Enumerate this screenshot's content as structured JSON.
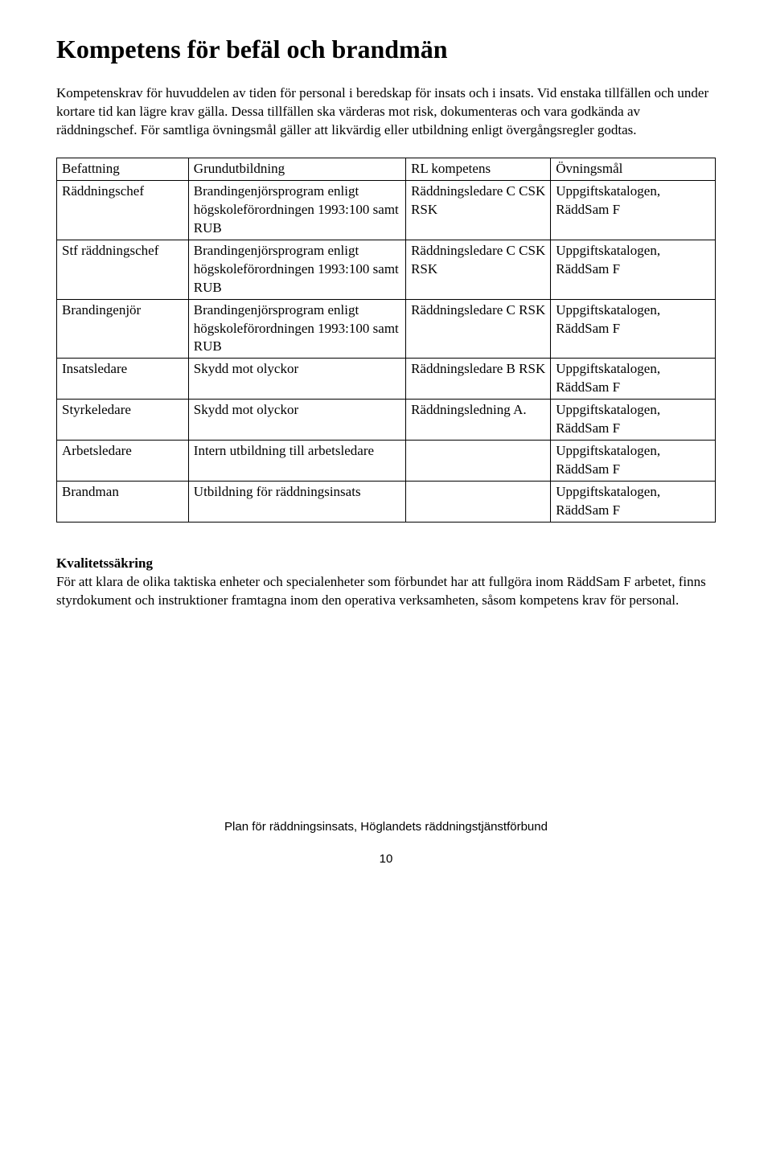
{
  "title": "Kompetens för befäl och brandmän",
  "intro": "Kompetenskrav för huvuddelen av tiden för personal i beredskap för insats och i insats. Vid enstaka tillfällen och under kortare tid kan lägre krav gälla. Dessa tillfällen ska värderas mot risk, dokumenteras och vara godkända av räddningschef. För samtliga övningsmål gäller att likvärdig eller utbildning enligt övergångsregler godtas.",
  "table": {
    "headers": {
      "befattning": "Befattning",
      "grund": "Grundutbildning",
      "rl": "RL kompetens",
      "ovn": "Övningsmål"
    },
    "rows": [
      {
        "befattning": "Räddningschef",
        "grund": "Brandingenjörsprogram enligt högskoleförordningen 1993:100 samt RUB",
        "rl": "Räddningsledare C CSK RSK",
        "ovn": "Uppgiftskatalogen, RäddSam F"
      },
      {
        "befattning": "Stf räddningschef",
        "grund": "Brandingenjörsprogram enligt högskoleförordningen 1993:100 samt RUB",
        "rl": "Räddningsledare C CSK  RSK",
        "ovn": "Uppgiftskatalogen, RäddSam F"
      },
      {
        "befattning": "Brandingenjör",
        "grund": "Brandingenjörsprogram enligt högskoleförordningen 1993:100 samt RUB",
        "rl": "Räddningsledare C RSK",
        "ovn": "Uppgiftskatalogen, RäddSam F"
      },
      {
        "befattning": "Insatsledare",
        "grund": "Skydd mot olyckor",
        "rl": "Räddningsledare B RSK",
        "ovn": "Uppgiftskatalogen, RäddSam F"
      },
      {
        "befattning": "Styrkeledare",
        "grund": "Skydd mot olyckor",
        "rl": "Räddningsledning A.",
        "ovn": "Uppgiftskatalogen, RäddSam F"
      },
      {
        "befattning": "Arbetsledare",
        "grund": "Intern utbildning till arbetsledare",
        "rl": "",
        "ovn": "Uppgiftskatalogen, RäddSam F"
      },
      {
        "befattning": "Brandman",
        "grund": "Utbildning för räddningsinsats",
        "rl": "",
        "ovn": "Uppgiftskatalogen, RäddSam F"
      }
    ]
  },
  "quality": {
    "heading": "Kvalitetssäkring",
    "body": "För att klara de olika taktiska enheter och specialenheter som förbundet har att fullgöra inom RäddSam F arbetet, finns styrdokument och instruktioner framtagna inom den operativa verksamheten, såsom kompetens krav för personal."
  },
  "footer": "Plan för räddningsinsats, Höglandets räddningstjänstförbund",
  "page_number": "10"
}
